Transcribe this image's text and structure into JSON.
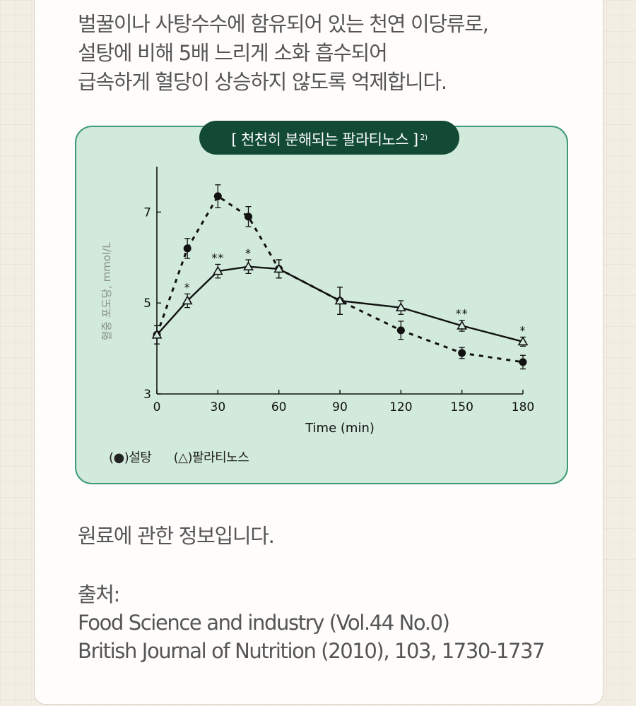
{
  "intro_lines": [
    "벌꿀이나  사탕수수에 함유되어 있는 천연 이당류로,",
    "설탕에 비해 5배 느리게 소화 흡수되어",
    "급속하게 혈당이 상승하지 않도록 억제합니다."
  ],
  "chart_title": "[ 천천히 분해되는 팔라티노스 ]",
  "chart_title_ref": "2)",
  "chart_data": {
    "type": "line",
    "xlabel": "Time (min)",
    "ylabel": "혈중 포도당, mmol/L",
    "xlim": [
      0,
      180
    ],
    "ylim": [
      3,
      8
    ],
    "xticks": [
      0,
      30,
      60,
      90,
      120,
      150,
      180
    ],
    "yticks": [
      3,
      5,
      7
    ],
    "series": [
      {
        "name": "설탕",
        "marker": "filled-circle",
        "style": "dashed",
        "x": [
          0,
          15,
          30,
          45,
          60,
          90,
          120,
          150,
          180
        ],
        "y": [
          4.3,
          6.2,
          7.35,
          6.9,
          5.75,
          5.05,
          4.4,
          3.9,
          3.7
        ],
        "err": [
          0.2,
          0.22,
          0.25,
          0.22,
          0.2,
          0.3,
          0.2,
          0.12,
          0.15
        ]
      },
      {
        "name": "팔라티노스",
        "marker": "open-triangle",
        "style": "solid",
        "x": [
          0,
          15,
          30,
          45,
          60,
          90,
          120,
          150,
          180
        ],
        "y": [
          4.3,
          5.05,
          5.7,
          5.8,
          5.75,
          5.05,
          4.9,
          4.5,
          4.15
        ],
        "err": [
          0.2,
          0.15,
          0.15,
          0.15,
          0.2,
          0.3,
          0.15,
          0.12,
          0.1
        ]
      }
    ],
    "annotations": [
      {
        "x": 15,
        "y": 5.05,
        "text": "*",
        "series": "팔라티노스"
      },
      {
        "x": 30,
        "y": 5.7,
        "text": "**",
        "series": "팔라티노스"
      },
      {
        "x": 45,
        "y": 5.8,
        "text": "*",
        "series": "팔라티노스"
      },
      {
        "x": 150,
        "y": 4.5,
        "text": "**",
        "series": "팔라티노스"
      },
      {
        "x": 180,
        "y": 4.15,
        "text": "*",
        "series": "팔라티노스"
      }
    ],
    "grid": false,
    "legend": "bottom-left",
    "legend_items": [
      "(●)설탕",
      "(△)팔라티노스"
    ]
  },
  "note": "원료에 관한 정보입니다.",
  "sources": {
    "label": "출처:",
    "lines": [
      "Food Science and industry (Vol.44 No.0)",
      "British Journal of Nutrition (2010), 103, 1730-1737"
    ]
  },
  "colors": {
    "chart_bg": "#d2eadb",
    "chart_border": "#3e9a76",
    "title_bg": "#124a36",
    "text": "#555555"
  }
}
